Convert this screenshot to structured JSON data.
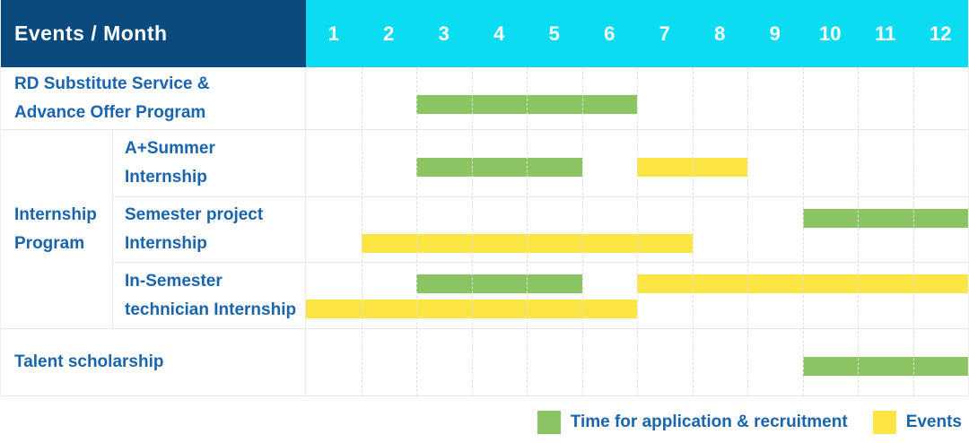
{
  "header": {
    "corner_label": "Events / Month",
    "months": [
      "1",
      "2",
      "3",
      "4",
      "5",
      "6",
      "7",
      "8",
      "9",
      "10",
      "11",
      "12"
    ]
  },
  "group_label": "Internship\nProgram",
  "colors": {
    "header_bg": "#0b4a7f",
    "months_bg": "#0cdcf2",
    "label_text": "#1a64ad",
    "application_green": "#8ac463",
    "event_yellow": "#fde544",
    "grid_solid": "#e7e7e7",
    "grid_dashed": "#dedede"
  },
  "legend": {
    "application": {
      "label": "Time for application & recruitment",
      "color": "#8ac463"
    },
    "event": {
      "label": "Events",
      "color": "#fde544"
    }
  },
  "chart_data": {
    "type": "gantt",
    "x_unit": "month",
    "x_ticks": [
      1,
      2,
      3,
      4,
      5,
      6,
      7,
      8,
      9,
      10,
      11,
      12
    ],
    "x_range": [
      1,
      12
    ],
    "grid": "dashed-vertical",
    "legend_position": "bottom-right",
    "rows": [
      {
        "label": "RD Substitute Service &\nAdvance Offer Program",
        "group": null,
        "bars": [
          {
            "type": "application",
            "start_month": 3,
            "end_month": 6,
            "line": "single"
          }
        ]
      },
      {
        "label": "A+Summer\nInternship",
        "group": "Internship Program",
        "bars": [
          {
            "type": "application",
            "start_month": 3,
            "end_month": 5,
            "line": "single"
          },
          {
            "type": "event",
            "start_month": 7,
            "end_month": 8,
            "line": "single"
          }
        ]
      },
      {
        "label": "Semester project\nInternship",
        "group": "Internship Program",
        "bars": [
          {
            "type": "application",
            "start_month": 10,
            "end_month": 12,
            "line": "upper"
          },
          {
            "type": "event",
            "start_month": 2,
            "end_month": 7,
            "line": "lower"
          }
        ]
      },
      {
        "label": "In-Semester\ntechnician Internship",
        "group": "Internship Program",
        "bars": [
          {
            "type": "application",
            "start_month": 3,
            "end_month": 5,
            "line": "upper"
          },
          {
            "type": "event",
            "start_month": 7,
            "end_month": 12,
            "line": "upper"
          },
          {
            "type": "event",
            "start_month": 1,
            "end_month": 6,
            "line": "lower"
          }
        ]
      },
      {
        "label": "Talent scholarship",
        "group": null,
        "bars": [
          {
            "type": "application",
            "start_month": 10,
            "end_month": 12,
            "line": "single"
          }
        ]
      }
    ]
  }
}
